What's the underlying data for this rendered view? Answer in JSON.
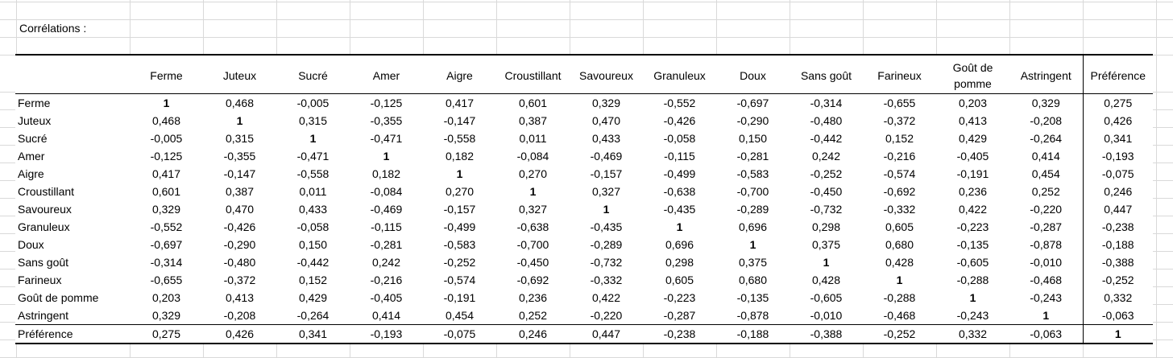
{
  "sheet": {
    "title": "Corrélations :"
  },
  "table": {
    "columns": [
      "Ferme",
      "Juteux",
      "Sucré",
      "Amer",
      "Aigre",
      "Croustillant",
      "Savoureux",
      "Granuleux",
      "Doux",
      "Sans goût",
      "Farineux",
      "Goût de pomme",
      "Astringent",
      "Préférence"
    ],
    "rows": [
      {
        "label": "Ferme",
        "values": [
          "1",
          "0,468",
          "-0,005",
          "-0,125",
          "0,417",
          "0,601",
          "0,329",
          "-0,552",
          "-0,697",
          "-0,314",
          "-0,655",
          "0,203",
          "0,329",
          "0,275"
        ]
      },
      {
        "label": "Juteux",
        "values": [
          "0,468",
          "1",
          "0,315",
          "-0,355",
          "-0,147",
          "0,387",
          "0,470",
          "-0,426",
          "-0,290",
          "-0,480",
          "-0,372",
          "0,413",
          "-0,208",
          "0,426"
        ]
      },
      {
        "label": "Sucré",
        "values": [
          "-0,005",
          "0,315",
          "1",
          "-0,471",
          "-0,558",
          "0,011",
          "0,433",
          "-0,058",
          "0,150",
          "-0,442",
          "0,152",
          "0,429",
          "-0,264",
          "0,341"
        ]
      },
      {
        "label": "Amer",
        "values": [
          "-0,125",
          "-0,355",
          "-0,471",
          "1",
          "0,182",
          "-0,084",
          "-0,469",
          "-0,115",
          "-0,281",
          "0,242",
          "-0,216",
          "-0,405",
          "0,414",
          "-0,193"
        ]
      },
      {
        "label": "Aigre",
        "values": [
          "0,417",
          "-0,147",
          "-0,558",
          "0,182",
          "1",
          "0,270",
          "-0,157",
          "-0,499",
          "-0,583",
          "-0,252",
          "-0,574",
          "-0,191",
          "0,454",
          "-0,075"
        ]
      },
      {
        "label": "Croustillant",
        "values": [
          "0,601",
          "0,387",
          "0,011",
          "-0,084",
          "0,270",
          "1",
          "0,327",
          "-0,638",
          "-0,700",
          "-0,450",
          "-0,692",
          "0,236",
          "0,252",
          "0,246"
        ]
      },
      {
        "label": "Savoureux",
        "values": [
          "0,329",
          "0,470",
          "0,433",
          "-0,469",
          "-0,157",
          "0,327",
          "1",
          "-0,435",
          "-0,289",
          "-0,732",
          "-0,332",
          "0,422",
          "-0,220",
          "0,447"
        ]
      },
      {
        "label": "Granuleux",
        "values": [
          "-0,552",
          "-0,426",
          "-0,058",
          "-0,115",
          "-0,499",
          "-0,638",
          "-0,435",
          "1",
          "0,696",
          "0,298",
          "0,605",
          "-0,223",
          "-0,287",
          "-0,238"
        ]
      },
      {
        "label": "Doux",
        "values": [
          "-0,697",
          "-0,290",
          "0,150",
          "-0,281",
          "-0,583",
          "-0,700",
          "-0,289",
          "0,696",
          "1",
          "0,375",
          "0,680",
          "-0,135",
          "-0,878",
          "-0,188"
        ]
      },
      {
        "label": "Sans goût",
        "values": [
          "-0,314",
          "-0,480",
          "-0,442",
          "0,242",
          "-0,252",
          "-0,450",
          "-0,732",
          "0,298",
          "0,375",
          "1",
          "0,428",
          "-0,605",
          "-0,010",
          "-0,388"
        ]
      },
      {
        "label": "Farineux",
        "values": [
          "-0,655",
          "-0,372",
          "0,152",
          "-0,216",
          "-0,574",
          "-0,692",
          "-0,332",
          "0,605",
          "0,680",
          "0,428",
          "1",
          "-0,288",
          "-0,468",
          "-0,252"
        ]
      },
      {
        "label": "Goût de pomme",
        "values": [
          "0,203",
          "0,413",
          "0,429",
          "-0,405",
          "-0,191",
          "0,236",
          "0,422",
          "-0,223",
          "-0,135",
          "-0,605",
          "-0,288",
          "1",
          "-0,243",
          "0,332"
        ]
      },
      {
        "label": "Astringent",
        "values": [
          "0,329",
          "-0,208",
          "-0,264",
          "0,414",
          "0,454",
          "0,252",
          "-0,220",
          "-0,287",
          "-0,878",
          "-0,010",
          "-0,468",
          "-0,243",
          "1",
          "-0,063"
        ]
      },
      {
        "label": "Préférence",
        "values": [
          "0,275",
          "0,426",
          "0,341",
          "-0,193",
          "-0,075",
          "0,246",
          "0,447",
          "-0,238",
          "-0,188",
          "-0,388",
          "-0,252",
          "0,332",
          "-0,063",
          "1"
        ]
      }
    ]
  }
}
